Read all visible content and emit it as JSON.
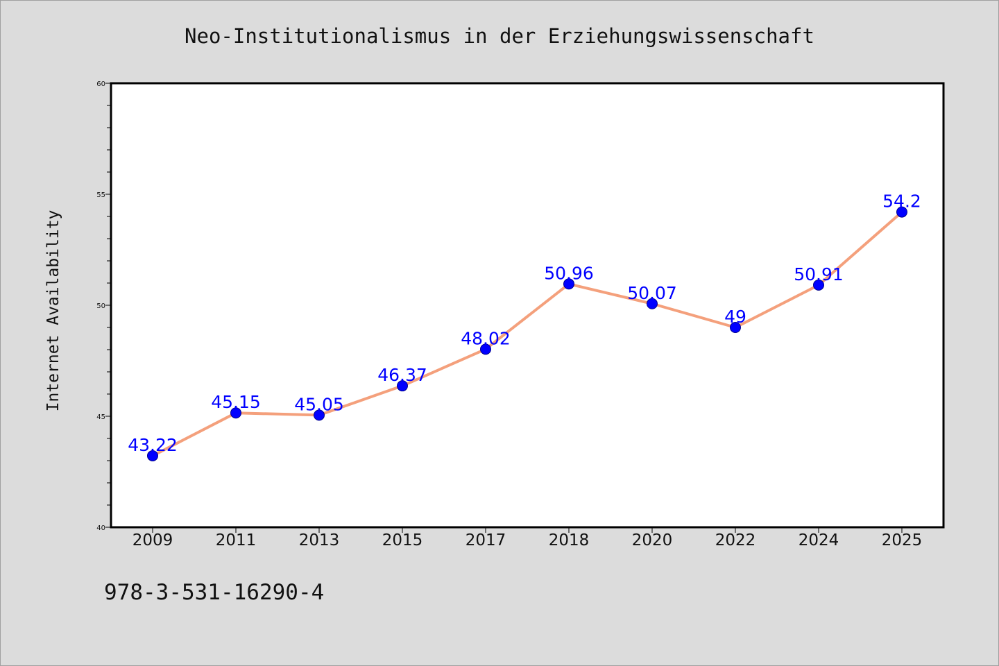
{
  "chart_data": {
    "type": "line",
    "title": "Neo-Institutionalismus in der Erziehungswissenschaft",
    "xlabel": "",
    "ylabel": "Internet Availability",
    "categories": [
      "2009",
      "2011",
      "2013",
      "2015",
      "2017",
      "2018",
      "2020",
      "2022",
      "2024",
      "2025"
    ],
    "values": [
      43.22,
      45.15,
      45.05,
      46.37,
      48.02,
      50.96,
      50.07,
      49,
      50.91,
      54.2
    ],
    "data_labels": [
      "43.22",
      "45.15",
      "45.05",
      "46.37",
      "48.02",
      "50.96",
      "50.07",
      "49",
      "50.91",
      "54.2"
    ],
    "ylim": [
      40,
      60
    ],
    "yticks": [
      "40",
      "45",
      "50",
      "55",
      "60"
    ],
    "grid": false,
    "legend": "none",
    "line_color": "#f4a07c",
    "marker_color": "#0000ff",
    "label_color": "#0000ff",
    "background": "#dcdcdc",
    "plot_background": "#ffffff"
  },
  "footnote": "978-3-531-16290-4"
}
